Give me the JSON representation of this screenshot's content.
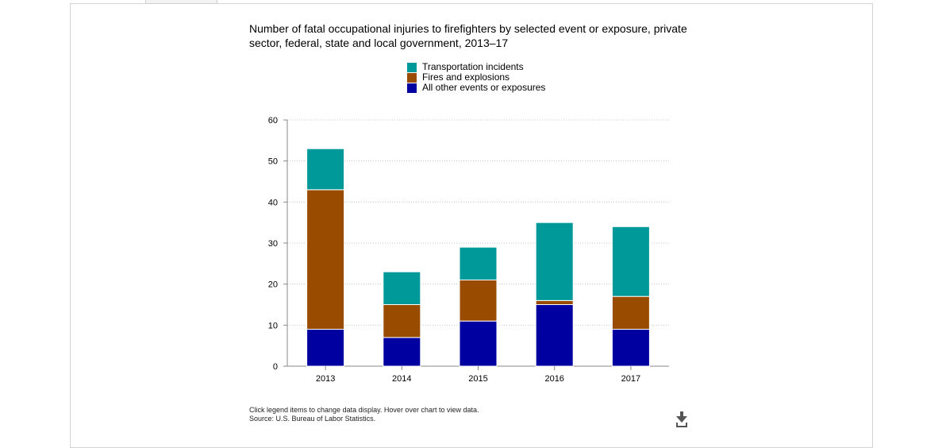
{
  "chart_data": {
    "type": "bar",
    "stacked": true,
    "title": "Number of fatal occupational injuries to firefighters by selected event or exposure, private sector, federal, state and local government, 2013–17",
    "categories": [
      "2013",
      "2014",
      "2015",
      "2016",
      "2017"
    ],
    "series": [
      {
        "name": "All other events or exposures",
        "color": "#0000a0",
        "values": [
          9,
          7,
          11,
          15,
          9
        ]
      },
      {
        "name": "Fires and explosions",
        "color": "#994c00",
        "values": [
          34,
          8,
          10,
          1,
          8
        ]
      },
      {
        "name": "Transportation incidents",
        "color": "#009999",
        "values": [
          10,
          8,
          8,
          19,
          17
        ]
      }
    ],
    "legend_order": [
      "Transportation incidents",
      "Fires and explosions",
      "All other events or exposures"
    ],
    "xlabel": "",
    "ylabel": "",
    "ylim": [
      0,
      60
    ],
    "yticks": [
      0,
      10,
      20,
      30,
      40,
      50,
      60
    ],
    "grid": "dotted",
    "legend_position": "top-center"
  },
  "footnote": {
    "line1": "Click legend items to change data display. Hover over chart to view data.",
    "line2": "Source: U.S. Bureau of Labor Statistics."
  },
  "icons": {
    "download": "download-icon"
  }
}
